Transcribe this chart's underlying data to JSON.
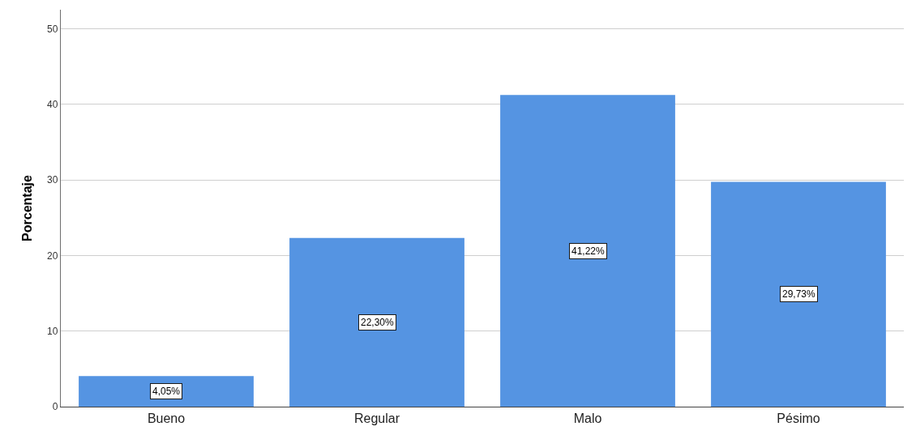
{
  "chart_data": {
    "type": "bar",
    "ylabel": "Porcentaje",
    "categories": [
      "Bueno",
      "Regular",
      "Malo",
      "Pésimo"
    ],
    "values": [
      4.05,
      22.3,
      41.22,
      29.73
    ],
    "value_labels": [
      "4,05%",
      "22,30%",
      "41,22%",
      "29,73%"
    ],
    "color": "#5594e2",
    "ylim": [
      0,
      52.5
    ],
    "yticks": [
      0,
      10,
      20,
      30,
      40,
      50
    ],
    "grid": "y"
  }
}
